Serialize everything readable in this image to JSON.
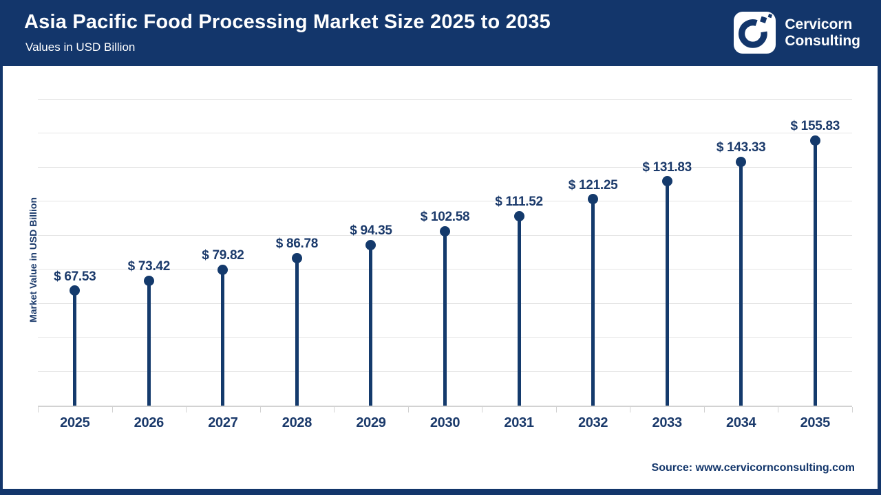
{
  "header": {
    "title": "Asia Pacific Food Processing Market Size 2025 to 2035",
    "subtitle": "Values in USD Billion",
    "brand": {
      "line1": "Cervicorn",
      "line2": "Consulting"
    }
  },
  "chart_data": {
    "type": "lollipop",
    "title": "Asia Pacific Food Processing Market Size 2025 to 2035",
    "subtitle": "Values in USD Billion",
    "categories": [
      "2025",
      "2026",
      "2027",
      "2028",
      "2029",
      "2030",
      "2031",
      "2032",
      "2033",
      "2034",
      "2035"
    ],
    "values": [
      67.53,
      73.42,
      79.82,
      86.78,
      94.35,
      102.58,
      111.52,
      121.25,
      131.83,
      143.33,
      155.83
    ],
    "value_prefix": "$ ",
    "xlabel": "",
    "ylabel": "Market Value in USD Billion",
    "ylim": [
      0,
      200
    ],
    "grid_step": 20,
    "grid_max": 180,
    "grid": true,
    "legend": false
  },
  "footer": {
    "source": "Source: www.cervicornconsulting.com"
  },
  "colors": {
    "navy": "#13366B",
    "stem": "#143A6C",
    "text": "#1B3A6B",
    "grid": "#E5E5E5",
    "axis": "#D2D2D2"
  }
}
